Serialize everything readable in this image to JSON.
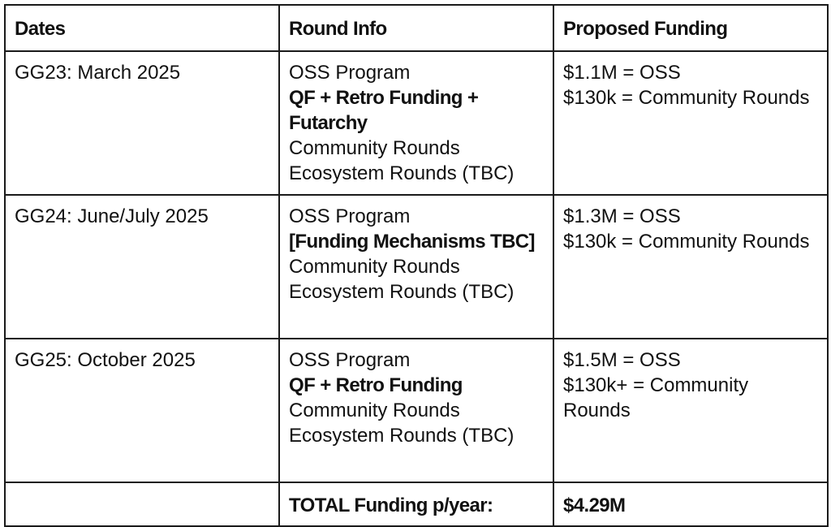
{
  "table": {
    "headers": [
      "Dates",
      "Round Info",
      "Proposed Funding"
    ],
    "rows": [
      {
        "date": "GG23: March 2025",
        "round_info": {
          "line1": "OSS Program",
          "mechanism": "QF + Retro Funding + Futarchy",
          "line3": "Community Rounds",
          "line4": "Ecosystem Rounds (TBC)"
        },
        "funding": {
          "oss": "$1.1M = OSS",
          "community": "$130k = Community Rounds"
        }
      },
      {
        "date": "GG24: June/July 2025",
        "round_info": {
          "line1": "OSS Program",
          "mechanism": "[Funding Mechanisms TBC]",
          "line3": "Community Rounds",
          "line4": "Ecosystem Rounds (TBC)"
        },
        "funding": {
          "oss": "$1.3M = OSS",
          "community": "$130k = Community Rounds"
        }
      },
      {
        "date": "GG25: October 2025",
        "round_info": {
          "line1": "OSS Program",
          "mechanism": "QF + Retro Funding",
          "line3": "Community Rounds",
          "line4": "Ecosystem Rounds (TBC)"
        },
        "funding": {
          "oss": "$1.5M = OSS",
          "community": "$130k+ = Community Rounds"
        }
      }
    ],
    "total": {
      "date": "",
      "label": "TOTAL Funding p/year:",
      "value": "$4.29M"
    }
  }
}
